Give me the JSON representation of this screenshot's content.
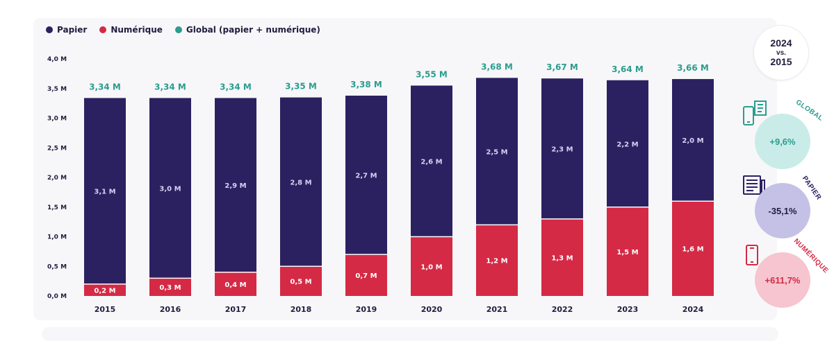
{
  "legend": [
    {
      "label": "Papier",
      "color": "#2b2161"
    },
    {
      "label": "Numérique",
      "color": "#d42a45"
    },
    {
      "label": "Global (papier + numérique)",
      "color": "#2a9d8f"
    }
  ],
  "comparison": {
    "year": "2024",
    "vs": "vs.",
    "base": "2015"
  },
  "stats": [
    {
      "tag": "GLOBAL",
      "value": "+9,6%",
      "icon": "phone-and-newspaper-icon",
      "tag_color": "#2a9d8f",
      "bg": "#c9ece8",
      "text_color": "#2a9d8f"
    },
    {
      "tag": "PAPIER",
      "value": "-35,1%",
      "icon": "newspaper-icon",
      "tag_color": "#2b2161",
      "bg": "#c5c0e6",
      "text_color": "#1f1d3d"
    },
    {
      "tag": "NUMÉRIQUE",
      "value": "+611,7%",
      "icon": "smartphone-icon",
      "tag_color": "#d42a45",
      "bg": "#f6c5cf",
      "text_color": "#d42a45"
    }
  ],
  "chart_data": {
    "type": "bar",
    "stacked": true,
    "categories": [
      "2015",
      "2016",
      "2017",
      "2018",
      "2019",
      "2020",
      "2021",
      "2022",
      "2023",
      "2024"
    ],
    "series": [
      {
        "name": "Numérique",
        "color": "#d42a45",
        "values": [
          0.2,
          0.3,
          0.4,
          0.5,
          0.7,
          1.0,
          1.2,
          1.3,
          1.5,
          1.6
        ],
        "labels": [
          "0,2 M",
          "0,3 M",
          "0,4 M",
          "0,5 M",
          "0,7 M",
          "1,0 M",
          "1,2 M",
          "1,3 M",
          "1,5 M",
          "1,6 M"
        ]
      },
      {
        "name": "Papier",
        "color": "#2b2161",
        "values": [
          3.1,
          3.0,
          2.9,
          2.8,
          2.7,
          2.6,
          2.5,
          2.3,
          2.2,
          2.0
        ],
        "labels": [
          "3,1 M",
          "3,0 M",
          "2,9 M",
          "2,8 M",
          "2,7 M",
          "2,6 M",
          "2,5 M",
          "2,3 M",
          "2,2 M",
          "2,0 M"
        ]
      }
    ],
    "totals": {
      "name": "Global (papier + numérique)",
      "color": "#2a9d8f",
      "values": [
        3.34,
        3.34,
        3.34,
        3.35,
        3.38,
        3.55,
        3.68,
        3.67,
        3.64,
        3.66
      ],
      "labels": [
        "3,34 M",
        "3,34 M",
        "3,34 M",
        "3,35 M",
        "3,38 M",
        "3,55 M",
        "3,68 M",
        "3,67 M",
        "3,64 M",
        "3,66 M"
      ]
    },
    "ylim": [
      0,
      4.0
    ],
    "yticks": [
      "0,0 M",
      "0,5 M",
      "1,0 M",
      "1,5 M",
      "2,0 M",
      "2,5 M",
      "3,0 M",
      "3,5 M",
      "4,0 M"
    ],
    "legend_position": "top-left",
    "grid": false
  }
}
